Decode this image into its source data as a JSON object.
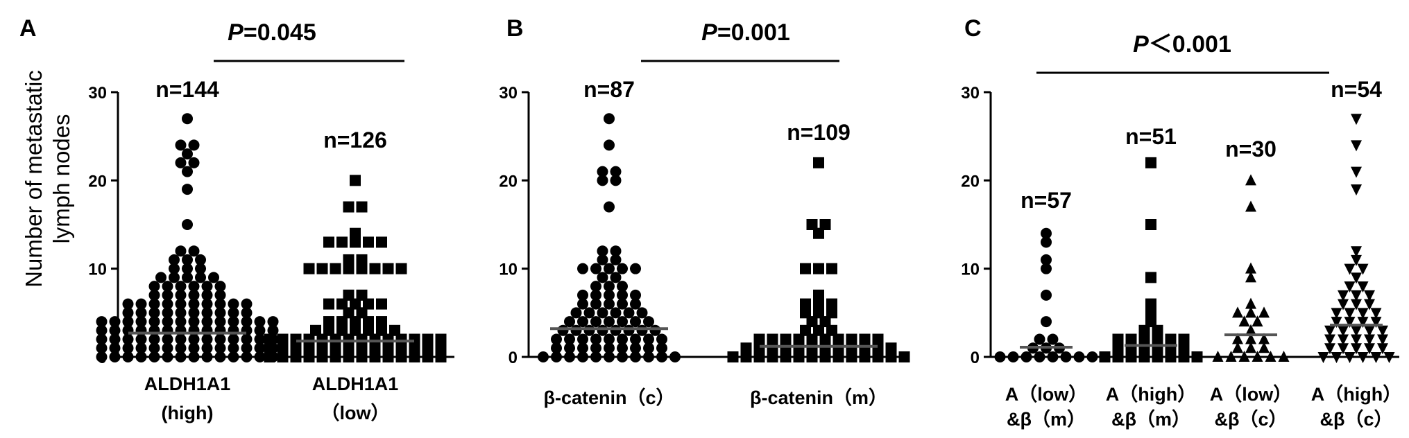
{
  "chart_data": [
    {
      "type": "scatter",
      "panel_label": "A",
      "ylabel_line1": "Number of metastatic",
      "ylabel_line2": "lymph nodes",
      "ylim": [
        0,
        30
      ],
      "yticks": [
        "0",
        "10",
        "20",
        "30"
      ],
      "p_value": {
        "prefix": "P",
        "text": "=0.045"
      },
      "groups": [
        {
          "label_line1": "ALDH1A1",
          "label_line2": "(high)",
          "n_label": "n=144",
          "marker": "circle",
          "mean": 2.7,
          "values": [
            27,
            24,
            24,
            23,
            22,
            22,
            21,
            19,
            15,
            12,
            12,
            11,
            11,
            11,
            10,
            10,
            10,
            9,
            9,
            9,
            9,
            9,
            8,
            8,
            8,
            8,
            8,
            8,
            7,
            7,
            7,
            7,
            7,
            7,
            6,
            6,
            6,
            6,
            6,
            6,
            6,
            6,
            6,
            6,
            5,
            5,
            5,
            5,
            5,
            5,
            5,
            5,
            5,
            5,
            4,
            4,
            4,
            4,
            4,
            4,
            4,
            4,
            4,
            4,
            4,
            4,
            4,
            4,
            3,
            3,
            3,
            3,
            3,
            3,
            3,
            3,
            3,
            3,
            3,
            3,
            3,
            3,
            2,
            2,
            2,
            2,
            2,
            2,
            2,
            2,
            2,
            2,
            2,
            2,
            2,
            2,
            1,
            1,
            1,
            1,
            1,
            1,
            1,
            1,
            1,
            1,
            1,
            1,
            1,
            1,
            0,
            0,
            0,
            0,
            0,
            0,
            0,
            0,
            0,
            0,
            0,
            0,
            0,
            0
          ]
        },
        {
          "label_line1": "ALDH1A1",
          "label_line2": "（low）",
          "n_label": "n=126",
          "marker": "square",
          "mean": 1.8,
          "values": [
            20,
            17,
            17,
            14,
            13,
            13,
            13,
            13,
            13,
            11,
            11,
            10,
            10,
            10,
            10,
            10,
            10,
            10,
            10,
            7,
            7,
            6,
            6,
            6,
            6,
            6,
            5,
            5,
            4,
            4,
            4,
            4,
            4,
            3,
            3,
            3,
            3,
            3,
            3,
            3,
            2,
            2,
            2,
            2,
            2,
            2,
            2,
            2,
            2,
            2,
            2,
            2,
            2,
            2,
            1,
            1,
            1,
            1,
            1,
            1,
            1,
            1,
            1,
            1,
            1,
            1,
            1,
            1,
            0,
            0,
            0,
            0,
            0,
            0,
            0,
            0,
            0,
            0,
            0,
            0,
            0,
            0
          ]
        }
      ]
    },
    {
      "type": "scatter",
      "panel_label": "B",
      "ylim": [
        0,
        30
      ],
      "yticks": [
        "0",
        "10",
        "20",
        "30"
      ],
      "p_value": {
        "prefix": "P",
        "text": "=0.001"
      },
      "groups": [
        {
          "label_line1": "β-catenin（c）",
          "n_label": "n=87",
          "marker": "circle",
          "mean": 3.2,
          "values": [
            27,
            24,
            21,
            21,
            20,
            20,
            17,
            12,
            12,
            11,
            11,
            10,
            10,
            10,
            10,
            10,
            9,
            9,
            8,
            8,
            8,
            7,
            7,
            7,
            7,
            7,
            6,
            6,
            6,
            6,
            6,
            5,
            5,
            5,
            5,
            5,
            5,
            4,
            4,
            4,
            4,
            4,
            4,
            4,
            3,
            3,
            3,
            3,
            3,
            3,
            3,
            3,
            2,
            2,
            2,
            2,
            2,
            2,
            2,
            2,
            2,
            1,
            1,
            1,
            1,
            1,
            1,
            1,
            1,
            1,
            0,
            0,
            0,
            0,
            0,
            0,
            0,
            0,
            0,
            0,
            0
          ]
        },
        {
          "label_line1": "β-catenin（m）",
          "n_label": "n=109",
          "marker": "square",
          "mean": 1.2,
          "values": [
            22,
            15,
            15,
            14,
            10,
            10,
            10,
            7,
            6,
            6,
            6,
            5,
            5,
            5,
            4,
            4,
            3,
            3,
            3,
            2,
            2,
            2,
            2,
            2,
            2,
            2,
            2,
            2,
            2,
            1,
            1,
            1,
            1,
            1,
            1,
            1,
            1,
            1,
            1,
            1,
            1,
            0,
            0,
            0,
            0,
            0,
            0,
            0,
            0,
            0,
            0,
            0,
            0,
            0,
            0
          ]
        }
      ]
    },
    {
      "type": "scatter",
      "panel_label": "C",
      "ylim": [
        0,
        30
      ],
      "yticks": [
        "0",
        "10",
        "20",
        "30"
      ],
      "p_value": {
        "prefix": "P",
        "text": "＜0.001"
      },
      "groups": [
        {
          "label_line1": "A（low）",
          "label_line2": "&β（m）",
          "n_label": "n=57",
          "marker": "circle",
          "mean": 1.1,
          "values": [
            14,
            13,
            11,
            10,
            7,
            4,
            2,
            2,
            1,
            1,
            1,
            0,
            0,
            0,
            0,
            0,
            0,
            0,
            0
          ]
        },
        {
          "label_line1": "A（high）",
          "label_line2": "&β（m）",
          "n_label": "n=51",
          "marker": "square",
          "mean": 1.3,
          "values": [
            22,
            15,
            9,
            6,
            5,
            4,
            3,
            3,
            2,
            2,
            2,
            2,
            2,
            2,
            1,
            1,
            1,
            1,
            1,
            1,
            0,
            0,
            0,
            0,
            0,
            0,
            0,
            0
          ]
        },
        {
          "label_line1": "A（low）",
          "label_line2": "&β（c）",
          "n_label": "n=30",
          "marker": "triangle-up",
          "mean": 2.5,
          "values": [
            20,
            17,
            10,
            9,
            6,
            5,
            5,
            5,
            4,
            4,
            3,
            2,
            2,
            2,
            1,
            1,
            1,
            0,
            0,
            0,
            0,
            0,
            0
          ]
        },
        {
          "label_line1": "A（high）",
          "label_line2": "&β（c）",
          "n_label": "n=54",
          "marker": "triangle-down",
          "mean": 3.6,
          "values": [
            27,
            24,
            21,
            19,
            12,
            11,
            10,
            10,
            9,
            8,
            8,
            7,
            7,
            7,
            6,
            6,
            6,
            5,
            5,
            5,
            5,
            4,
            4,
            4,
            4,
            3,
            3,
            3,
            3,
            3,
            2,
            2,
            2,
            2,
            2,
            1,
            1,
            1,
            1,
            1,
            0,
            0,
            0,
            0,
            0,
            0
          ]
        }
      ]
    }
  ]
}
